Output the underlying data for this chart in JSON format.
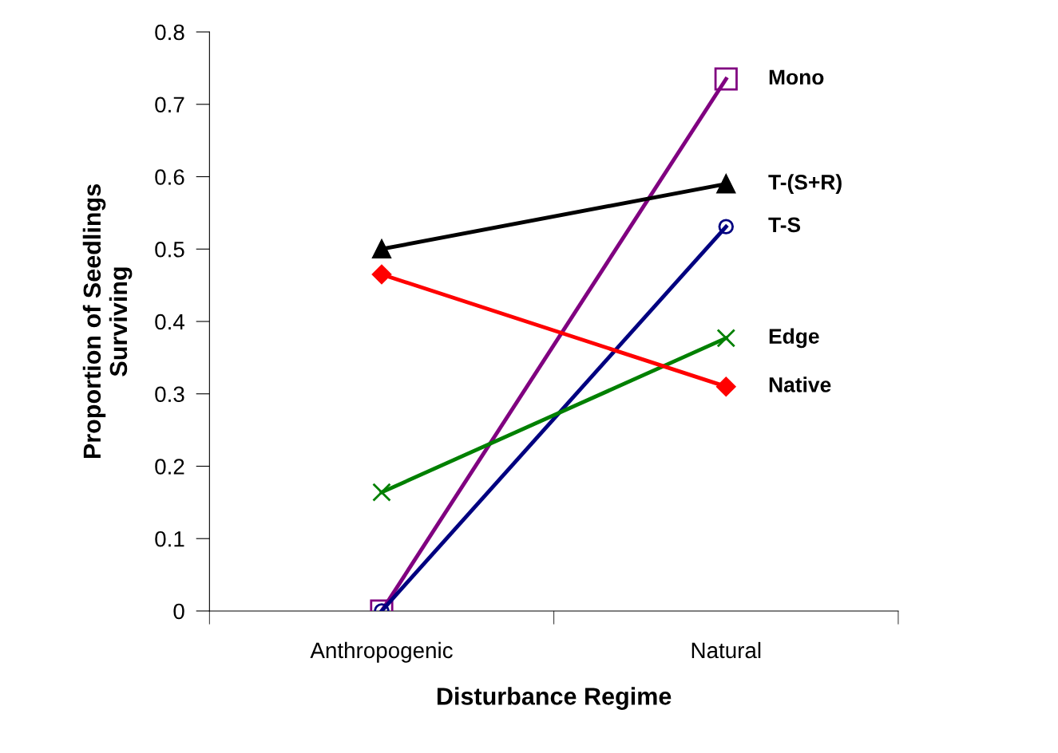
{
  "chart_data": {
    "type": "line",
    "xlabel": "Disturbance Regime",
    "ylabel": "Proportion of Seedlings\nSurviving",
    "categories": [
      "Anthropogenic",
      "Natural"
    ],
    "series": [
      {
        "name": "Mono",
        "color": "#800080",
        "marker": "square",
        "values": [
          0,
          0.735
        ]
      },
      {
        "name": "T-(S+R)",
        "color": "#000000",
        "marker": "triangle",
        "values": [
          0.5,
          0.59
        ]
      },
      {
        "name": "T-S",
        "color": "#000080",
        "marker": "circle",
        "values": [
          0,
          0.531
        ]
      },
      {
        "name": "Edge",
        "color": "#008000",
        "marker": "cross",
        "values": [
          0.164,
          0.377
        ]
      },
      {
        "name": "Native",
        "color": "#ff0000",
        "marker": "diamond",
        "values": [
          0.465,
          0.31
        ]
      }
    ],
    "ylim": [
      0,
      0.8
    ],
    "yticks": [
      0,
      0.1,
      0.2,
      0.3,
      0.4,
      0.5,
      0.6,
      0.7,
      0.8
    ],
    "grid": false,
    "legend": false
  }
}
